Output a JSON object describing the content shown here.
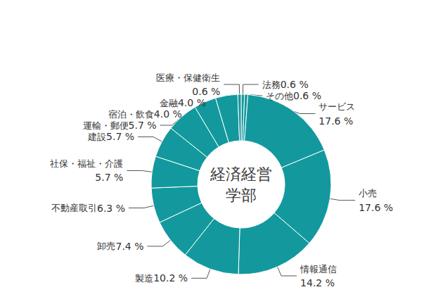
{
  "chart_data": {
    "type": "pie",
    "title": "経済経営学部",
    "categories": [
      "法務",
      "その他",
      "サービス",
      "小売",
      "情報通信",
      "製造",
      "卸売",
      "不動産取引",
      "社保・福祉・介護",
      "建設",
      "運輸・郵便",
      "宿泊・飲食",
      "金融",
      "医療・保健衛生"
    ],
    "values": [
      0.6,
      0.6,
      17.6,
      17.6,
      14.2,
      10.2,
      7.4,
      6.3,
      5.7,
      5.7,
      5.7,
      4.0,
      4.0,
      0.6
    ],
    "value_labels": [
      "0.6 %",
      "0.6 %",
      "17.6 %",
      "17.6 %",
      "14.2 %",
      "10.2 %",
      "7.4 %",
      "6.3 %",
      "5.7 %",
      "5.7 %",
      "5.7 %",
      "4.0 %",
      "4.0 %",
      "0.6 %"
    ],
    "color": "#13999d",
    "data_labels": true
  }
}
